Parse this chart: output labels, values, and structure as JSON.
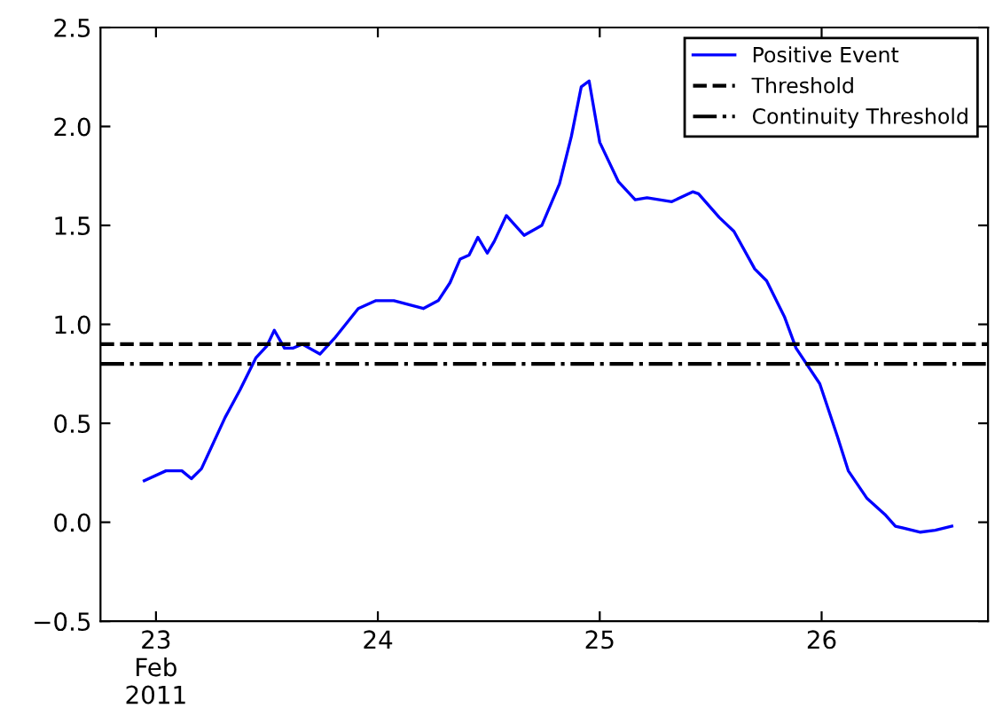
{
  "chart_data": {
    "type": "line",
    "x": [
      "2011-02-22T22:44",
      "2011-02-23T01:05",
      "2011-02-23T02:48",
      "2011-02-23T03:50",
      "2011-02-23T04:55",
      "2011-02-23T07:29",
      "2011-02-23T09:06",
      "2011-02-23T10:48",
      "2011-02-23T11:59",
      "2011-02-23T12:48",
      "2011-02-23T13:54",
      "2011-02-23T14:51",
      "2011-02-23T15:49",
      "2011-02-23T17:44",
      "2011-02-23T19:19",
      "2011-02-23T21:53",
      "2011-02-23T23:48",
      "2011-02-24T01:44",
      "2011-02-24T04:55",
      "2011-02-24T06:32",
      "2011-02-24T07:48",
      "2011-02-24T08:54",
      "2011-02-24T09:52",
      "2011-02-24T10:49",
      "2011-02-24T11:50",
      "2011-02-24T12:36",
      "2011-02-24T13:54",
      "2011-02-24T15:49",
      "2011-02-24T17:44",
      "2011-02-24T19:39",
      "2011-02-24T20:56",
      "2011-02-24T22:00",
      "2011-02-24T22:51",
      "2011-02-25T00:00",
      "2011-02-25T02:02",
      "2011-02-25T03:50",
      "2011-02-25T05:07",
      "2011-02-25T07:48",
      "2011-02-25T10:03",
      "2011-02-25T10:41",
      "2011-02-25T12:56",
      "2011-02-25T14:31",
      "2011-02-25T16:46",
      "2011-02-25T18:03",
      "2011-02-25T19:58",
      "2011-02-25T21:14",
      "2011-02-25T23:48",
      "2011-02-26T01:44",
      "2011-02-26T02:53",
      "2011-02-26T04:55",
      "2011-02-26T06:50",
      "2011-02-26T07:59",
      "2011-02-26T10:41",
      "2011-02-26T12:17",
      "2011-02-26T14:05"
    ],
    "series": [
      {
        "name": "Positive Event",
        "color": "#0000ff",
        "values": [
          0.21,
          0.26,
          0.26,
          0.22,
          0.27,
          0.53,
          0.67,
          0.83,
          0.89,
          0.97,
          0.88,
          0.88,
          0.9,
          0.85,
          0.93,
          1.08,
          1.12,
          1.12,
          1.08,
          1.12,
          1.21,
          1.33,
          1.35,
          1.44,
          1.36,
          1.42,
          1.55,
          1.45,
          1.5,
          1.71,
          1.95,
          2.2,
          2.23,
          1.92,
          1.72,
          1.63,
          1.64,
          1.62,
          1.67,
          1.66,
          1.54,
          1.47,
          1.28,
          1.22,
          1.04,
          0.88,
          0.7,
          0.43,
          0.26,
          0.12,
          0.04,
          -0.02,
          -0.05,
          -0.04,
          -0.02
        ]
      }
    ],
    "ref_lines": [
      {
        "axis": "y",
        "value": 0.9,
        "label": "Threshold",
        "color": "#000000",
        "line_style": "dashed"
      },
      {
        "axis": "y",
        "value": 0.8,
        "label": "Continuity Threshold",
        "color": "#000000",
        "line_style": "dashdot"
      }
    ],
    "xlim": [
      "2011-02-22T18:00",
      "2011-02-26T18:00"
    ],
    "xticks": [
      {
        "value": "2011-02-23",
        "label": "23\nFeb\n2011"
      },
      {
        "value": "2011-02-24",
        "label": "24"
      },
      {
        "value": "2011-02-25",
        "label": "25"
      },
      {
        "value": "2011-02-26",
        "label": "26"
      }
    ],
    "ylim": [
      -0.5,
      2.5
    ],
    "yticks": [
      {
        "value": -0.5,
        "label": "−0.5"
      },
      {
        "value": 0,
        "label": "0.0"
      },
      0.5,
      {
        "value": 1,
        "label": "1.0"
      },
      1.5,
      {
        "value": 2,
        "label": "2.0"
      },
      2.5
    ],
    "legend": "top right",
    "grid": false,
    "marker": "none",
    "line_style": "solid"
  }
}
